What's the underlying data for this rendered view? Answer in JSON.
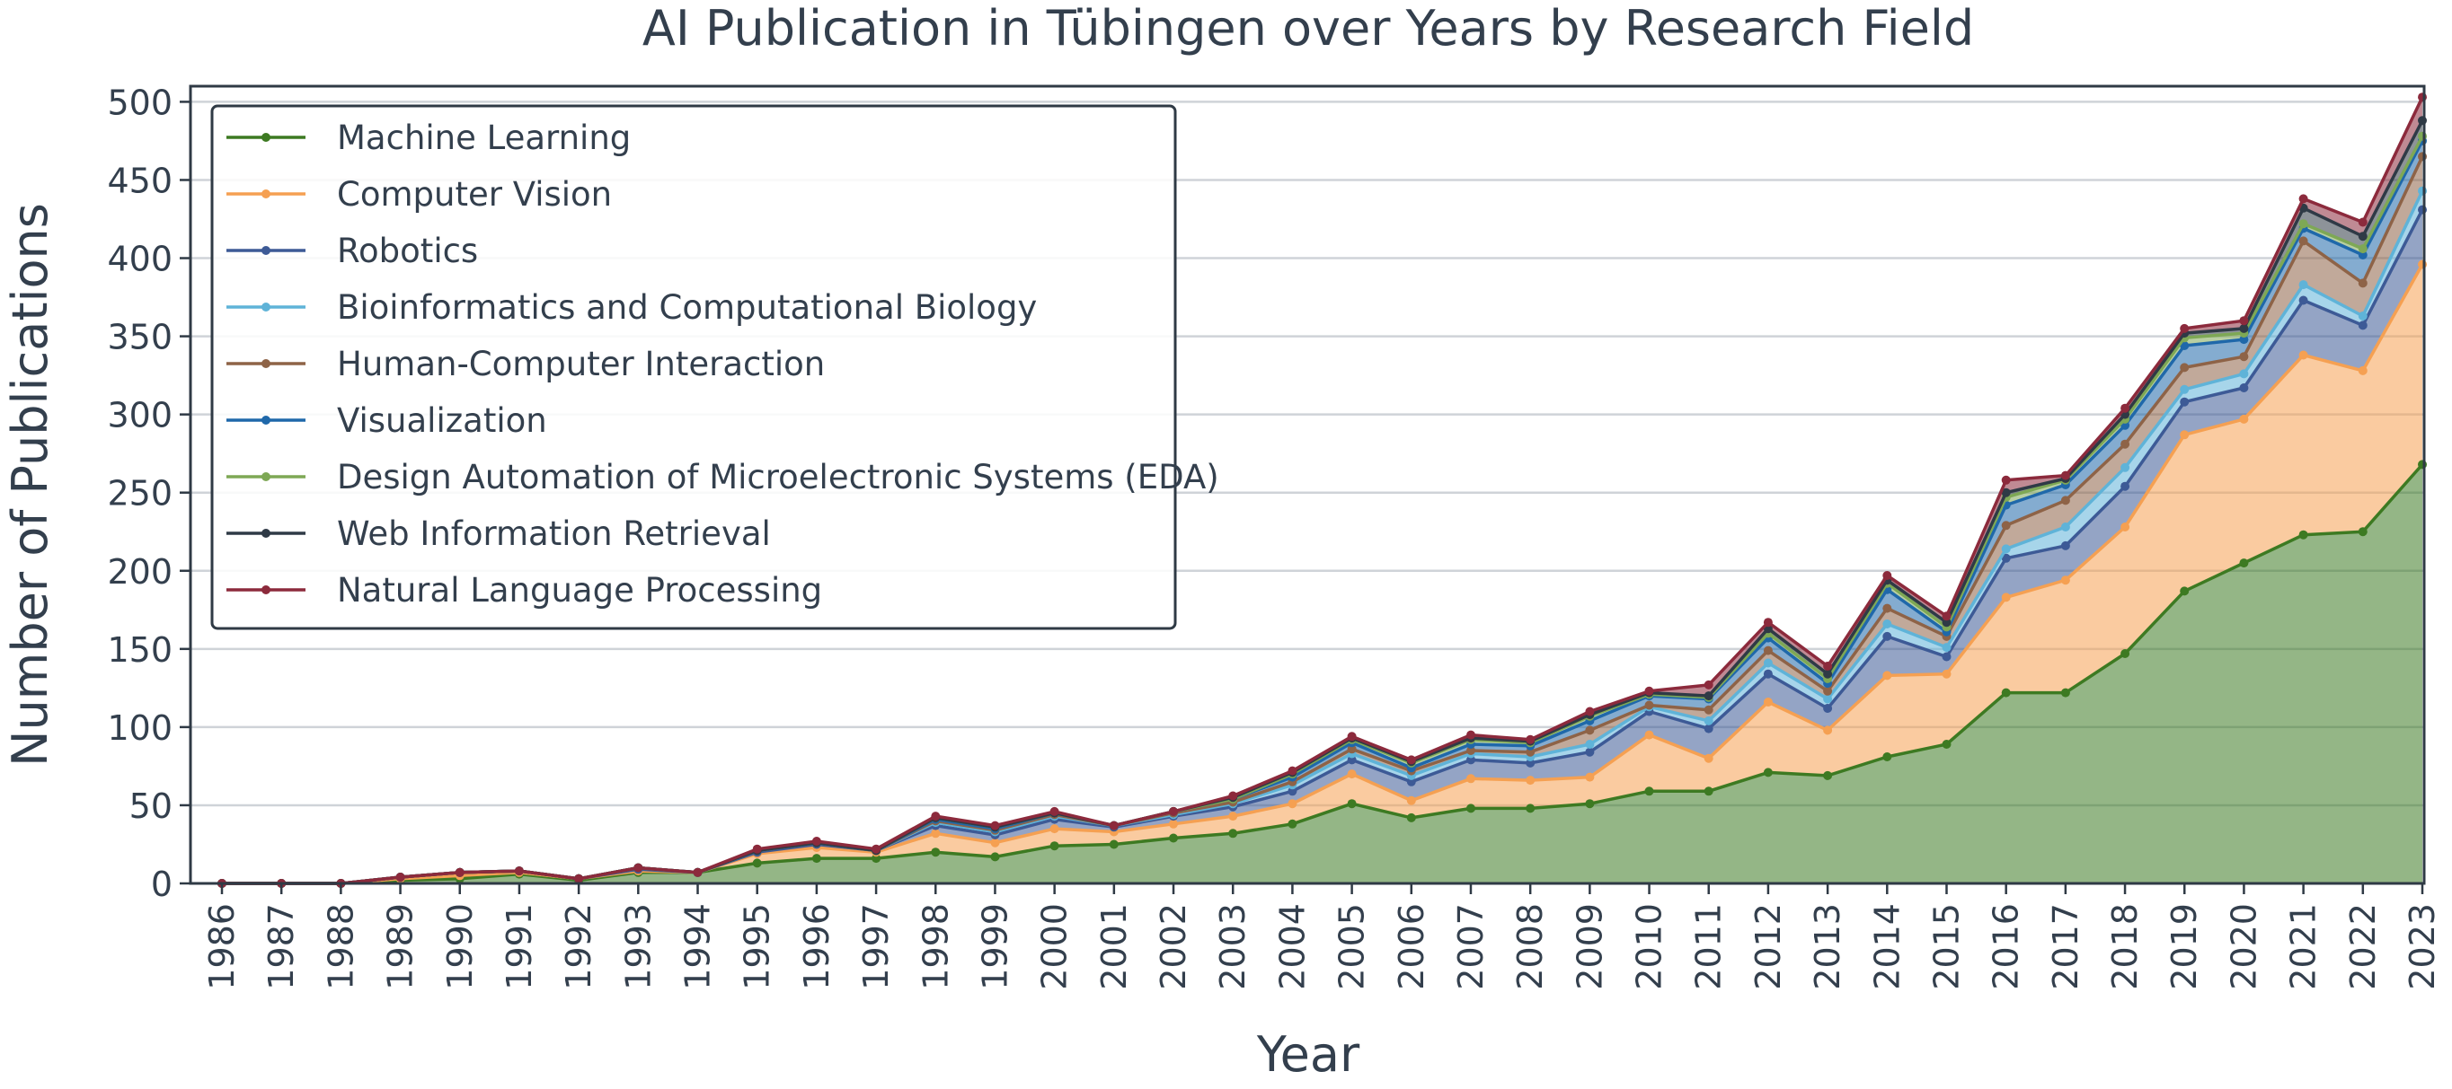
{
  "chart_data": {
    "type": "area",
    "stacked": true,
    "title": "AI Publication in Tübingen over Years by Research Field",
    "xlabel": "Year",
    "ylabel": "Number of Publications",
    "ylim": [
      0,
      510
    ],
    "yticks": [
      0,
      50,
      100,
      150,
      200,
      250,
      300,
      350,
      400,
      450,
      500
    ],
    "grid": true,
    "legend_position": "top-left",
    "categories": [
      "1986",
      "1987",
      "1988",
      "1989",
      "1990",
      "1991",
      "1992",
      "1993",
      "1994",
      "1995",
      "1996",
      "1997",
      "1998",
      "1999",
      "2000",
      "2001",
      "2002",
      "2003",
      "2004",
      "2005",
      "2006",
      "2007",
      "2008",
      "2009",
      "2010",
      "2011",
      "2012",
      "2013",
      "2014",
      "2015",
      "2016",
      "2017",
      "2018",
      "2019",
      "2020",
      "2021",
      "2022",
      "2023"
    ],
    "series": [
      {
        "name": "Machine Learning",
        "color": "#3d7a22",
        "values": [
          0,
          0,
          0,
          2,
          3,
          6,
          2,
          7,
          7,
          13,
          16,
          16,
          20,
          17,
          24,
          25,
          29,
          32,
          38,
          51,
          42,
          48,
          48,
          51,
          59,
          59,
          71,
          69,
          81,
          89,
          122,
          122,
          147,
          187,
          205,
          223,
          225,
          268
        ]
      },
      {
        "name": "Computer Vision",
        "color": "#f5a052",
        "values": [
          0,
          0,
          0,
          1,
          2,
          1,
          1,
          1,
          0,
          6,
          7,
          4,
          12,
          9,
          11,
          8,
          9,
          11,
          13,
          19,
          11,
          19,
          18,
          17,
          36,
          21,
          45,
          29,
          52,
          45,
          61,
          72,
          81,
          100,
          92,
          115,
          103,
          128
        ]
      },
      {
        "name": "Robotics",
        "color": "#3d5a96",
        "values": [
          0,
          0,
          0,
          1,
          2,
          1,
          0,
          1,
          0,
          1,
          2,
          1,
          5,
          5,
          6,
          3,
          5,
          6,
          8,
          9,
          12,
          12,
          11,
          16,
          15,
          19,
          18,
          14,
          25,
          11,
          25,
          22,
          26,
          21,
          20,
          35,
          29,
          35
        ]
      },
      {
        "name": "Bioinformatics and Computational Biology",
        "color": "#5fb3d8",
        "values": [
          0,
          0,
          0,
          0,
          0,
          0,
          0,
          1,
          0,
          1,
          1,
          0,
          2,
          2,
          2,
          1,
          1,
          2,
          4,
          4,
          4,
          4,
          4,
          5,
          3,
          5,
          7,
          6,
          8,
          6,
          6,
          12,
          12,
          8,
          9,
          10,
          6,
          12
        ]
      },
      {
        "name": "Human-Computer Interaction",
        "color": "#8e6347",
        "values": [
          0,
          0,
          0,
          0,
          0,
          0,
          0,
          0,
          0,
          0,
          0,
          0,
          1,
          1,
          1,
          0,
          1,
          1,
          2,
          3,
          3,
          2,
          3,
          9,
          1,
          7,
          8,
          5,
          10,
          7,
          15,
          17,
          15,
          14,
          11,
          28,
          21,
          22
        ]
      },
      {
        "name": "Visualization",
        "color": "#1f68aa",
        "values": [
          0,
          0,
          0,
          0,
          0,
          0,
          0,
          0,
          0,
          0,
          0,
          0,
          1,
          1,
          1,
          0,
          1,
          2,
          3,
          4,
          2,
          4,
          4,
          6,
          6,
          7,
          8,
          5,
          12,
          3,
          13,
          10,
          12,
          14,
          11,
          8,
          18,
          10
        ]
      },
      {
        "name": "Design Automation of Microelectronic Systems (EDA)",
        "color": "#7ea855",
        "values": [
          0,
          0,
          0,
          0,
          0,
          0,
          0,
          0,
          0,
          0,
          0,
          0,
          1,
          1,
          0,
          0,
          0,
          0,
          2,
          2,
          3,
          3,
          2,
          3,
          1,
          1,
          3,
          3,
          4,
          3,
          5,
          3,
          4,
          5,
          4,
          3,
          4,
          3
        ]
      },
      {
        "name": "Web Information Retrieval",
        "color": "#2f3a46",
        "values": [
          0,
          0,
          0,
          0,
          0,
          0,
          0,
          0,
          0,
          0,
          0,
          0,
          0,
          0,
          0,
          0,
          0,
          1,
          1,
          1,
          1,
          1,
          1,
          1,
          1,
          1,
          3,
          3,
          2,
          3,
          3,
          1,
          3,
          3,
          3,
          10,
          8,
          10
        ]
      },
      {
        "name": "Natural Language Processing",
        "color": "#8c2a3c",
        "values": [
          0,
          0,
          0,
          0,
          0,
          0,
          0,
          0,
          0,
          1,
          1,
          1,
          1,
          1,
          1,
          0,
          0,
          1,
          1,
          1,
          1,
          2,
          1,
          2,
          1,
          7,
          4,
          5,
          3,
          4,
          8,
          2,
          4,
          3,
          5,
          6,
          9,
          15
        ]
      }
    ]
  }
}
